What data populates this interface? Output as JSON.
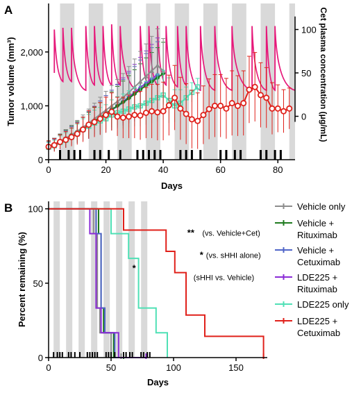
{
  "colors": {
    "vehicle_only": "#8c8c8c",
    "vehicle_rituximab": "#1e7a1e",
    "vehicle_cetuximab": "#4f64c8",
    "lde225_rituximab": "#8a2bd6",
    "lde225_only": "#4fe0b5",
    "lde225_cetuximab": "#e0201a",
    "cet_plasma": "#e6197a",
    "shade": "#d9d9d9"
  },
  "chart_data": [
    {
      "panel": "A",
      "type": "line",
      "xlabel": "Days",
      "ylabel": "Tumor volume (mm³)",
      "ylabel_right": "Cet plasma concentration (μg/mL)",
      "xlim": [
        0,
        86
      ],
      "ylim": [
        0,
        2900
      ],
      "xticks": [
        0,
        20,
        40,
        60,
        80
      ],
      "xtick_labels": [
        "0",
        "20",
        "40",
        "60",
        "80"
      ],
      "yticks": [
        0,
        1000,
        2000
      ],
      "ytick_labels": [
        "0",
        "1,000",
        "2,000"
      ],
      "y2lim": [
        -50,
        130
      ],
      "y2ticks": [
        0,
        50,
        100
      ],
      "y2tick_labels": [
        "0",
        "50",
        "100"
      ],
      "shaded_intervals": [
        [
          4,
          9
        ],
        [
          14,
          19
        ],
        [
          24,
          29
        ],
        [
          34,
          39
        ],
        [
          44,
          49
        ],
        [
          54,
          59
        ],
        [
          64,
          69
        ],
        [
          74,
          79
        ],
        [
          84,
          86
        ]
      ],
      "dosing_days": [
        4,
        7,
        9,
        11,
        16,
        18,
        21,
        25,
        31,
        33,
        35,
        37,
        39,
        46,
        48,
        50,
        53,
        60,
        62,
        65,
        67,
        74,
        76,
        79,
        81
      ],
      "pk_peaks": [
        {
          "day": 2,
          "peak": 100,
          "trough": 40
        },
        {
          "day": 5,
          "peak": 102,
          "trough": 40
        },
        {
          "day": 8,
          "peak": 102,
          "trough": 40
        },
        {
          "day": 13,
          "peak": 104,
          "trough": 30
        },
        {
          "day": 16,
          "peak": 104,
          "trough": 36
        },
        {
          "day": 19,
          "peak": 104,
          "trough": 36
        },
        {
          "day": 22,
          "peak": 106,
          "trough": 36
        },
        {
          "day": 25,
          "peak": 104,
          "trough": 36
        },
        {
          "day": 32,
          "peak": 104,
          "trough": 28
        },
        {
          "day": 35,
          "peak": 104,
          "trough": 36
        },
        {
          "day": 38,
          "peak": 104,
          "trough": 36
        },
        {
          "day": 41,
          "peak": 104,
          "trough": 36
        },
        {
          "day": 45,
          "peak": 104,
          "trough": 34
        },
        {
          "day": 48,
          "peak": 104,
          "trough": 36
        },
        {
          "day": 53,
          "peak": 104,
          "trough": 30
        },
        {
          "day": 58,
          "peak": 104,
          "trough": 30
        },
        {
          "day": 64,
          "peak": 104,
          "trough": 30
        },
        {
          "day": 71,
          "peak": 104,
          "trough": 30
        },
        {
          "day": 76,
          "peak": 104,
          "trough": 30
        },
        {
          "day": 79,
          "peak": 104,
          "trough": 30
        }
      ],
      "pk_end": {
        "day": 86,
        "value": 30
      },
      "series": [
        {
          "key": "lde225_cetuximab",
          "marker": "circle",
          "x": [
            0,
            2,
            4,
            6,
            8,
            10,
            12,
            14,
            16,
            18,
            20,
            22,
            24,
            26,
            28,
            30,
            32,
            34,
            36,
            38,
            40,
            42,
            44,
            46,
            48,
            50,
            52,
            54,
            56,
            58,
            60,
            62,
            64,
            66,
            68,
            70,
            72,
            74,
            76,
            78,
            80,
            82,
            84
          ],
          "y": [
            240,
            270,
            330,
            370,
            420,
            480,
            560,
            650,
            700,
            760,
            830,
            890,
            800,
            780,
            800,
            830,
            820,
            870,
            900,
            880,
            900,
            1010,
            1150,
            950,
            850,
            750,
            720,
            830,
            940,
            1000,
            1000,
            950,
            1050,
            1000,
            1050,
            1300,
            1350,
            1200,
            1150,
            950,
            950,
            900,
            950
          ],
          "err": [
            110,
            120,
            130,
            150,
            170,
            200,
            230,
            260,
            280,
            300,
            330,
            350,
            360,
            380,
            400,
            430,
            450,
            470,
            500,
            520,
            540,
            560,
            600,
            580,
            560,
            540,
            520,
            540,
            560,
            580,
            580,
            560,
            600,
            560,
            600,
            620,
            640,
            600,
            560,
            480,
            440,
            400,
            380
          ]
        },
        {
          "key": "lde225_only",
          "marker": "square",
          "x": [
            0,
            2,
            4,
            6,
            8,
            10,
            12,
            14,
            16,
            18,
            20,
            22,
            24,
            26,
            28,
            30,
            32,
            34,
            36,
            38,
            40,
            42,
            44,
            46,
            48,
            50,
            52
          ],
          "y": [
            230,
            260,
            320,
            360,
            420,
            480,
            560,
            620,
            680,
            720,
            760,
            830,
            870,
            900,
            940,
            980,
            1000,
            1050,
            1100,
            1150,
            1200,
            1100,
            1000,
            1050,
            1150,
            1250,
            1350
          ],
          "err": [
            90,
            100,
            120,
            140,
            160,
            180,
            200,
            220,
            240,
            250,
            260,
            280,
            300,
            320,
            340,
            360,
            380,
            400,
            420,
            440,
            460,
            420,
            300,
            250,
            200,
            180,
            160
          ]
        },
        {
          "key": "vehicle_only",
          "marker": "triangle",
          "x": [
            0,
            2,
            4,
            6,
            8,
            10,
            12,
            14,
            16,
            18,
            20,
            22,
            24,
            26,
            28,
            30,
            32,
            34,
            36,
            38,
            40
          ],
          "y": [
            240,
            280,
            340,
            400,
            460,
            530,
            600,
            680,
            760,
            840,
            920,
            1000,
            1080,
            1160,
            1250,
            1350,
            1450,
            1550,
            1650,
            1750,
            1650
          ],
          "err": [
            100,
            120,
            140,
            160,
            180,
            200,
            230,
            260,
            290,
            320,
            350,
            380,
            410,
            440,
            480,
            520,
            560,
            600,
            640,
            680,
            600
          ]
        },
        {
          "key": "vehicle_rituximab",
          "marker": "diamond",
          "x": [
            0,
            2,
            4,
            6,
            8,
            10,
            12,
            14,
            16,
            18,
            20,
            22,
            24,
            26,
            28,
            30,
            32,
            34,
            36,
            38,
            40
          ],
          "y": [
            250,
            290,
            340,
            400,
            460,
            520,
            580,
            650,
            720,
            790,
            860,
            930,
            1000,
            1070,
            1140,
            1220,
            1300,
            1380,
            1450,
            1520,
            1600
          ],
          "err": [
            100,
            110,
            130,
            150,
            170,
            190,
            210,
            230,
            250,
            270,
            300,
            330,
            360,
            390,
            420,
            450,
            480,
            510,
            540,
            560,
            580
          ]
        },
        {
          "key": "vehicle_cetuximab",
          "marker": "triangle-down",
          "x": [
            0,
            2,
            4,
            6,
            8,
            10,
            12,
            14,
            16,
            18,
            20,
            22,
            24,
            26,
            28,
            30,
            32,
            34,
            36,
            38
          ],
          "y": [
            230,
            270,
            330,
            380,
            440,
            500,
            570,
            640,
            710,
            780,
            850,
            920,
            990,
            1060,
            1140,
            1220,
            1300,
            1380,
            1460,
            1540
          ],
          "err": [
            90,
            110,
            130,
            150,
            170,
            190,
            220,
            250,
            280,
            310,
            340,
            370,
            400,
            430,
            470,
            510,
            550,
            590,
            620,
            650
          ]
        },
        {
          "key": "lde225_rituximab",
          "marker": "star",
          "x": [
            0,
            2,
            4,
            6,
            8,
            10,
            12,
            14,
            16,
            18,
            20,
            22,
            24,
            26,
            28,
            30,
            32,
            34,
            36,
            38
          ],
          "y": [
            240,
            280,
            330,
            390,
            450,
            510,
            570,
            640,
            710,
            780,
            850,
            920,
            1000,
            1080,
            1160,
            1250,
            1340,
            1420,
            1500,
            1580
          ],
          "err": [
            100,
            120,
            140,
            160,
            180,
            200,
            220,
            250,
            280,
            310,
            340,
            370,
            400,
            440,
            480,
            520,
            560,
            600,
            640,
            680
          ]
        }
      ]
    },
    {
      "panel": "B",
      "type": "line",
      "step": true,
      "xlabel": "Days",
      "ylabel": "Percent remaining (%)",
      "xlim": [
        0,
        175
      ],
      "ylim": [
        0,
        105
      ],
      "xticks": [
        0,
        50,
        100,
        150
      ],
      "xtick_labels": [
        "0",
        "50",
        "100",
        "150"
      ],
      "yticks": [
        0,
        50,
        100
      ],
      "ytick_labels": [
        "0",
        "50",
        "100"
      ],
      "shaded_intervals": [
        [
          4,
          9
        ],
        [
          14,
          19
        ],
        [
          24,
          29
        ],
        [
          34,
          39
        ],
        [
          44,
          49
        ],
        [
          54,
          59
        ],
        [
          64,
          69
        ],
        [
          74,
          79
        ]
      ],
      "dosing_days": [
        4,
        7,
        9,
        11,
        16,
        18,
        21,
        25,
        31,
        33,
        35,
        37,
        39,
        46,
        48,
        50,
        53,
        60,
        62,
        65,
        67,
        74,
        76,
        79,
        81
      ],
      "legend": [
        {
          "key": "vehicle_only",
          "label": [
            "Vehicle only"
          ]
        },
        {
          "key": "vehicle_rituximab",
          "label": [
            "Vehicle +",
            "Rituximab"
          ]
        },
        {
          "key": "vehicle_cetuximab",
          "label": [
            "Vehicle +",
            "Cetuximab"
          ]
        },
        {
          "key": "lde225_rituximab",
          "label": [
            "LDE225 +",
            "Rituximab"
          ]
        },
        {
          "key": "lde225_only",
          "label": [
            "LDE225 only"
          ]
        },
        {
          "key": "lde225_cetuximab",
          "label": [
            "LDE225 +",
            "Cetuximab"
          ]
        }
      ],
      "annotations": [
        {
          "text": "*",
          "x": 67,
          "y": 58
        },
        {
          "text": "**",
          "x": 111,
          "y": 82
        },
        {
          "text": "(vs. Vehicle+Cet)",
          "x": 123,
          "y": 82
        },
        {
          "text": "*",
          "x": 121,
          "y": 67
        },
        {
          "text": "(vs. sHHI alone)",
          "x": 126,
          "y": 67
        },
        {
          "text": "(sHHI vs. Vehicle)",
          "x": 116,
          "y": 52
        }
      ],
      "series": [
        {
          "key": "vehicle_only",
          "x": [
            0,
            36,
            39,
            41,
            50,
            58
          ],
          "y": [
            100,
            83.3,
            33.3,
            16.7,
            0,
            0
          ],
          "censor_x": [
            58
          ]
        },
        {
          "key": "vehicle_rituximab",
          "x": [
            0,
            40,
            42,
            44,
            52,
            60
          ],
          "y": [
            100,
            83.3,
            33.3,
            16.7,
            0,
            0
          ],
          "censor_x": [
            60
          ]
        },
        {
          "key": "vehicle_cetuximab",
          "x": [
            0,
            38,
            42,
            45,
            53,
            62
          ],
          "y": [
            100,
            83.3,
            33.3,
            16.7,
            0,
            0
          ],
          "censor_x": []
        },
        {
          "key": "lde225_rituximab",
          "x": [
            0,
            33,
            38,
            42,
            56,
            73,
            78
          ],
          "y": [
            100,
            83.3,
            33.3,
            16.7,
            0,
            0,
            0
          ],
          "censor_x": [
            78
          ]
        },
        {
          "key": "lde225_only",
          "x": [
            0,
            50,
            64,
            72,
            86,
            95
          ],
          "y": [
            100,
            83.3,
            66.7,
            33.3,
            16.7,
            0
          ],
          "censor_x": []
        },
        {
          "key": "lde225_cetuximab",
          "x": [
            0,
            60,
            94,
            101,
            110,
            125,
            172
          ],
          "y": [
            100,
            85.7,
            71.4,
            57.1,
            28.6,
            14.3,
            0
          ],
          "censor_x": [
            172
          ]
        }
      ]
    }
  ],
  "panel_labels": {
    "a": "A",
    "b": "B"
  }
}
